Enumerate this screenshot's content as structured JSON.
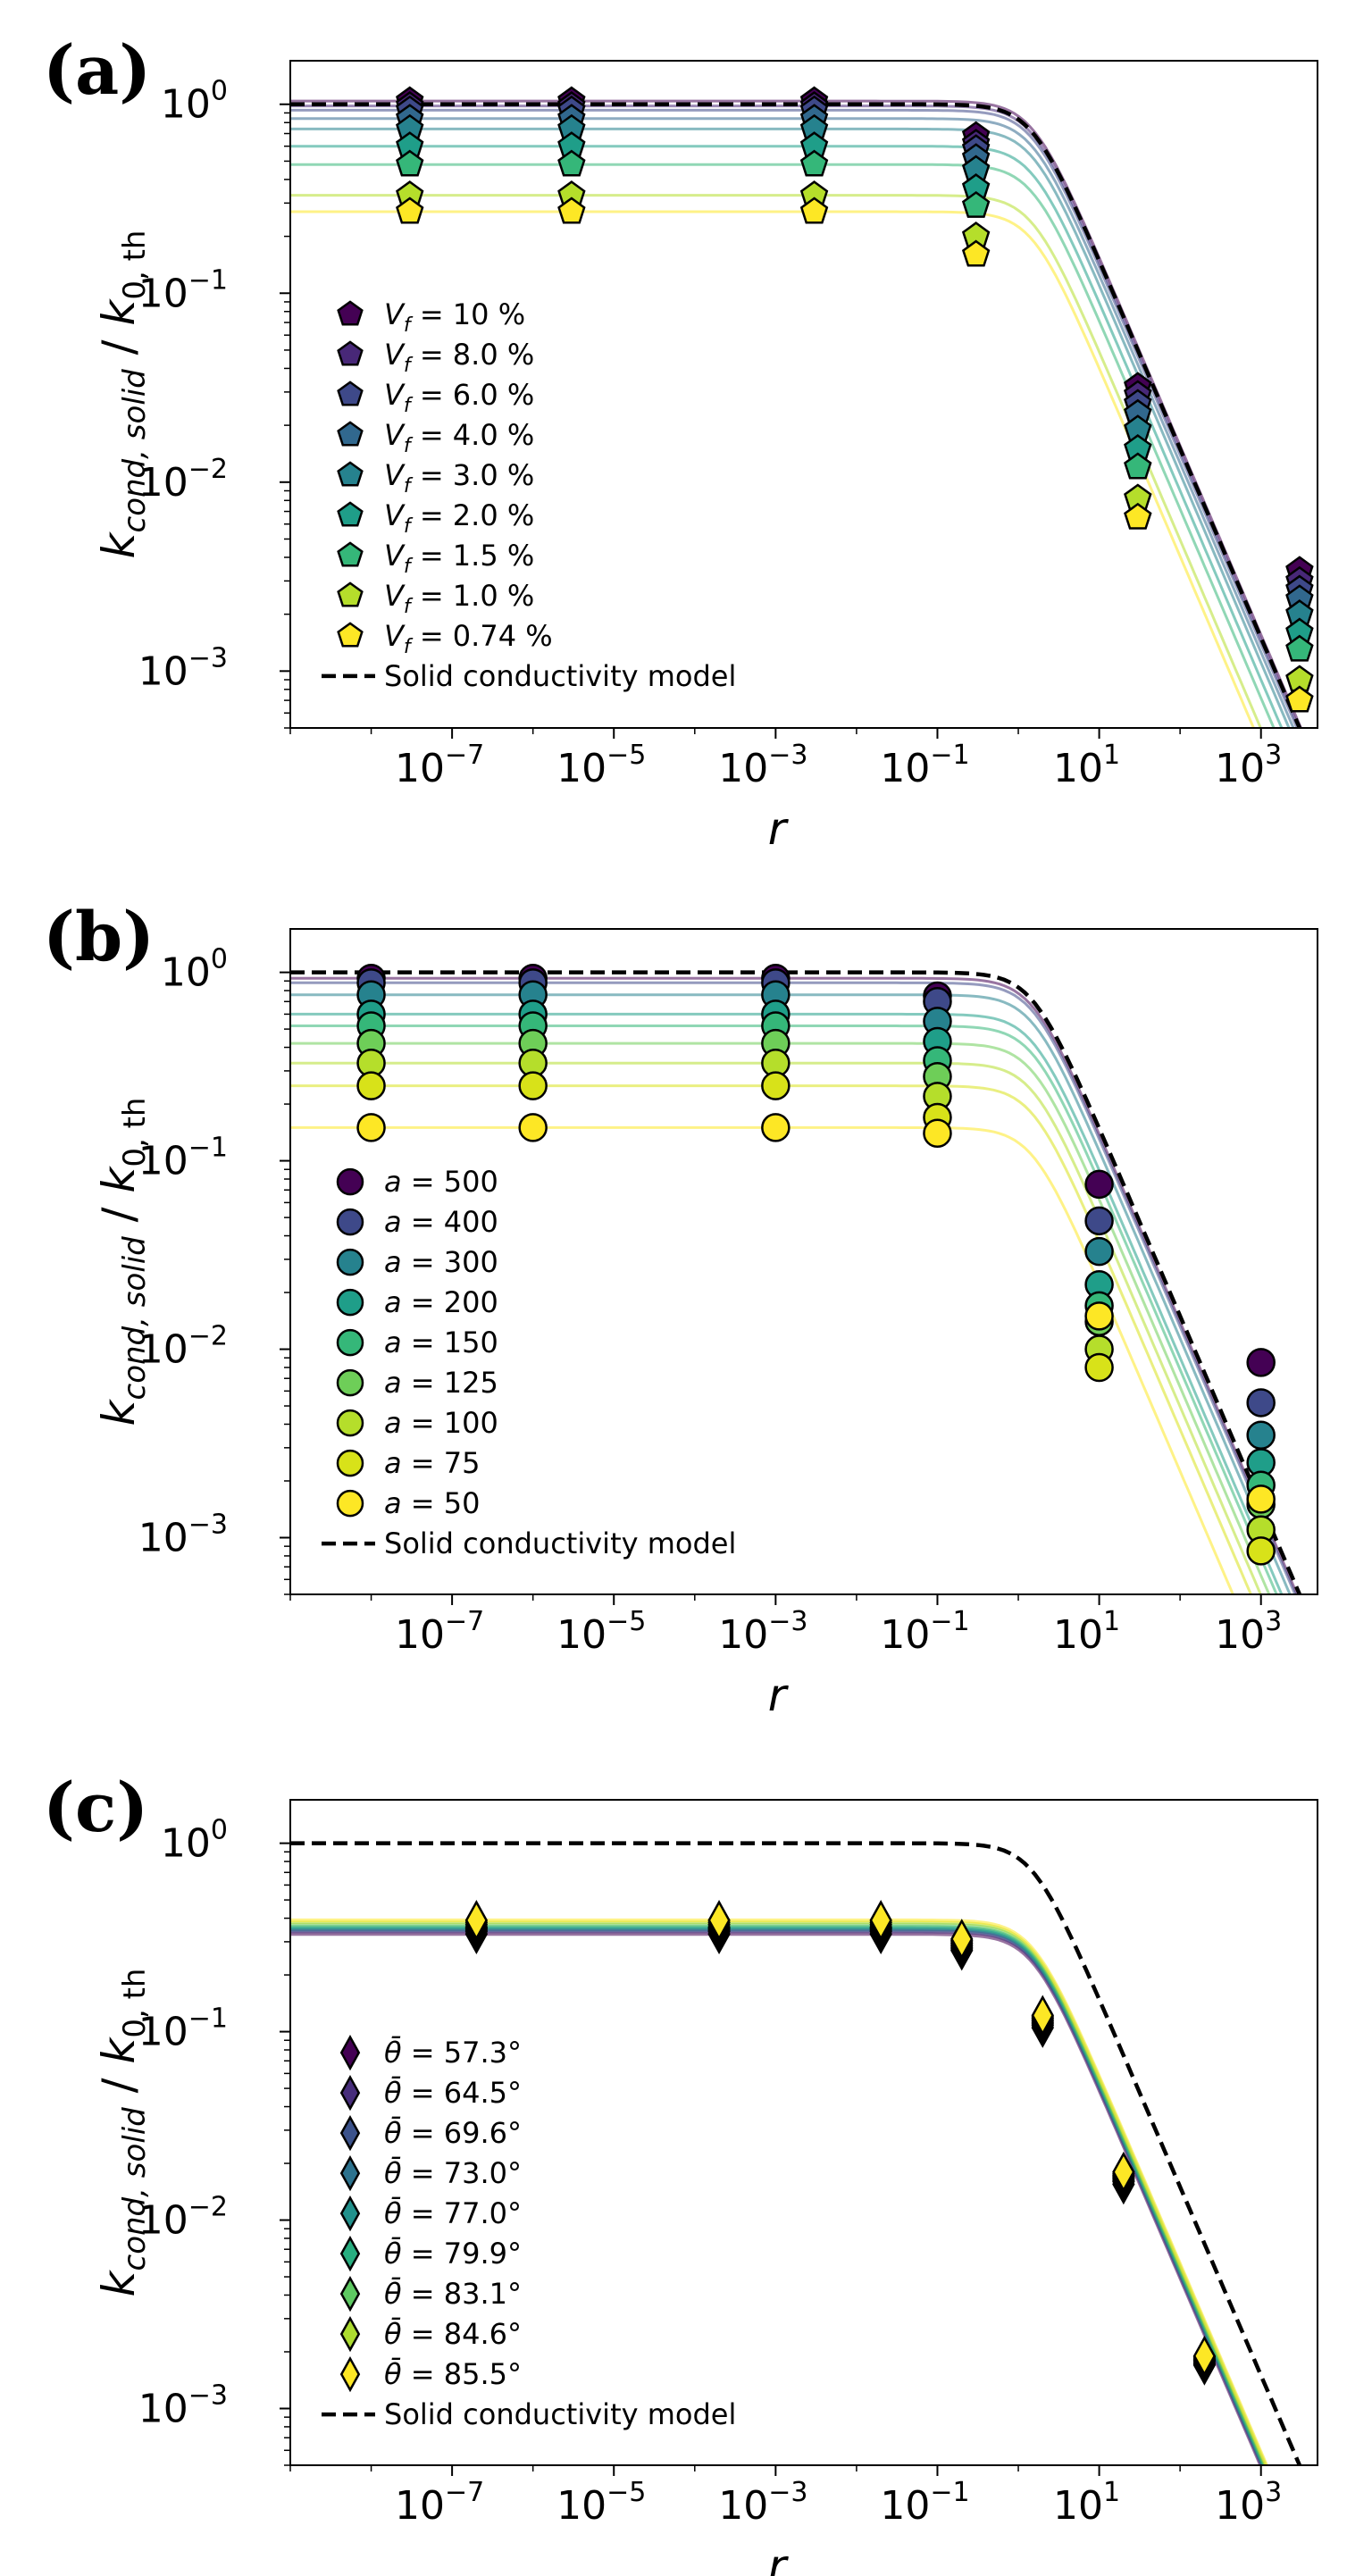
{
  "figure": {
    "ylabel_main": "k",
    "ylabel_sub": "cond, solid",
    "ylabel_sep": " / ",
    "ylabel_main2": "k",
    "ylabel_sub2": "0, th",
    "xlabel": "r",
    "x_ticks": [
      -7,
      -5,
      -3,
      -1,
      1,
      3
    ],
    "y_ticks": [
      0,
      -1,
      -2,
      -3
    ],
    "model_label": "Solid conductivity model"
  },
  "chart_data": [
    {
      "panel": "(a)",
      "type": "scatter",
      "marker": "pentagon",
      "xscale": "log",
      "yscale": "log",
      "xlim": [
        1e-09,
        5000
      ],
      "ylim": [
        0.0005,
        1.7
      ],
      "x": [
        3e-08,
        3e-06,
        0.003,
        0.3,
        30,
        3000
      ],
      "series": [
        {
          "name": "V_f = 10 %",
          "label_var": "V",
          "label_sub": "f",
          "label_val": " = 10 %",
          "color": "#440154",
          "plateau": 1.04,
          "values": [
            1.04,
            1.04,
            1.04,
            0.68,
            0.032,
            0.0034
          ]
        },
        {
          "name": "V_f = 8.0 %",
          "label_var": "V",
          "label_sub": "f",
          "label_val": " = 8.0 %",
          "color": "#482878",
          "plateau": 0.98,
          "values": [
            0.98,
            0.98,
            0.98,
            0.62,
            0.029,
            0.003
          ]
        },
        {
          "name": "V_f = 6.0 %",
          "label_var": "V",
          "label_sub": "f",
          "label_val": " = 6.0 %",
          "color": "#3e4989",
          "plateau": 0.93,
          "values": [
            0.93,
            0.93,
            0.93,
            0.58,
            0.026,
            0.0027
          ]
        },
        {
          "name": "V_f = 4.0 %",
          "label_var": "V",
          "label_sub": "f",
          "label_val": " = 4.0 %",
          "color": "#31688e",
          "plateau": 0.84,
          "values": [
            0.84,
            0.84,
            0.84,
            0.52,
            0.023,
            0.0024
          ]
        },
        {
          "name": "V_f = 3.0 %",
          "label_var": "V",
          "label_sub": "f",
          "label_val": " = 3.0 %",
          "color": "#26828e",
          "plateau": 0.74,
          "values": [
            0.74,
            0.74,
            0.74,
            0.45,
            0.019,
            0.002
          ]
        },
        {
          "name": "V_f = 2.0 %",
          "label_var": "V",
          "label_sub": "f",
          "label_val": " = 2.0 %",
          "color": "#1f9e89",
          "plateau": 0.6,
          "values": [
            0.6,
            0.6,
            0.6,
            0.36,
            0.015,
            0.0016
          ]
        },
        {
          "name": "V_f = 1.5 %",
          "label_var": "V",
          "label_sub": "f",
          "label_val": " = 1.5 %",
          "color": "#35b779",
          "plateau": 0.48,
          "values": [
            0.48,
            0.48,
            0.48,
            0.29,
            0.012,
            0.0013
          ]
        },
        {
          "name": "V_f = 1.0 %",
          "label_var": "V",
          "label_sub": "f",
          "label_val": " = 1.0 %",
          "color": "#b5de2b",
          "plateau": 0.33,
          "values": [
            0.33,
            0.33,
            0.33,
            0.2,
            0.0082,
            0.0009
          ]
        },
        {
          "name": "V_f = 0.74 %",
          "label_var": "V",
          "label_sub": "f",
          "label_val": " = 0.74 %",
          "color": "#fde725",
          "plateau": 0.27,
          "values": [
            0.27,
            0.27,
            0.27,
            0.16,
            0.0065,
            0.0007
          ]
        }
      ]
    },
    {
      "panel": "(b)",
      "type": "scatter",
      "marker": "circle",
      "xscale": "log",
      "yscale": "log",
      "xlim": [
        1e-09,
        5000
      ],
      "ylim": [
        0.0005,
        1.7
      ],
      "x": [
        1e-08,
        1e-06,
        0.001,
        0.1,
        10,
        1000
      ],
      "series": [
        {
          "name": "a = 500",
          "label_var": "a",
          "label_sub": "",
          "label_val": " = 500",
          "color": "#440154",
          "plateau": 0.93,
          "values": [
            0.93,
            0.93,
            0.93,
            0.75,
            0.075,
            0.0085
          ]
        },
        {
          "name": "a = 400",
          "label_var": "a",
          "label_sub": "",
          "label_val": " = 400",
          "color": "#3e4989",
          "plateau": 0.88,
          "values": [
            0.88,
            0.88,
            0.88,
            0.7,
            0.048,
            0.0052
          ]
        },
        {
          "name": "a = 300",
          "label_var": "a",
          "label_sub": "",
          "label_val": " = 300",
          "color": "#26828e",
          "plateau": 0.76,
          "values": [
            0.76,
            0.76,
            0.76,
            0.55,
            0.033,
            0.0035
          ]
        },
        {
          "name": "a = 200",
          "label_var": "a",
          "label_sub": "",
          "label_val": " = 200",
          "color": "#1f9e89",
          "plateau": 0.6,
          "values": [
            0.6,
            0.6,
            0.6,
            0.43,
            0.022,
            0.0025
          ]
        },
        {
          "name": "a = 150",
          "label_var": "a",
          "label_sub": "",
          "label_val": " = 150",
          "color": "#35b779",
          "plateau": 0.52,
          "values": [
            0.52,
            0.52,
            0.52,
            0.34,
            0.017,
            0.0019
          ]
        },
        {
          "name": "a = 125",
          "label_var": "a",
          "label_sub": "",
          "label_val": " = 125",
          "color": "#6ece58",
          "plateau": 0.42,
          "values": [
            0.42,
            0.42,
            0.42,
            0.28,
            0.014,
            0.0015
          ]
        },
        {
          "name": "a = 100",
          "label_var": "a",
          "label_sub": "",
          "label_val": " = 100",
          "color": "#b5de2b",
          "plateau": 0.33,
          "values": [
            0.33,
            0.33,
            0.33,
            0.22,
            0.01,
            0.0011
          ]
        },
        {
          "name": "a = 75",
          "label_var": "a",
          "label_sub": "",
          "label_val": " = 75",
          "color": "#d8e219",
          "plateau": 0.25,
          "values": [
            0.25,
            0.25,
            0.25,
            0.17,
            0.008,
            0.00085
          ]
        },
        {
          "name": "a = 50",
          "label_var": "a",
          "label_sub": "",
          "label_val": " = 50",
          "color": "#fde725",
          "plateau": 0.15,
          "values": [
            0.15,
            0.15,
            0.15,
            0.14,
            0.015,
            0.0016
          ]
        }
      ]
    },
    {
      "panel": "(c)",
      "type": "scatter",
      "marker": "diamond",
      "xscale": "log",
      "yscale": "log",
      "xlim": [
        1e-09,
        5000
      ],
      "ylim": [
        0.0005,
        1.7
      ],
      "x": [
        2e-07,
        0.0002,
        0.02,
        0.2,
        2,
        20,
        200
      ],
      "series": [
        {
          "name": "θ̄ = 57.3°",
          "label_var": "θ̄",
          "label_sub": "",
          "label_val": " = 57.3°",
          "color": "#440154",
          "plateau": 0.33,
          "values": [
            0.33,
            0.33,
            0.33,
            0.27,
            0.105,
            0.0155,
            0.0017
          ]
        },
        {
          "name": "θ̄ = 64.5°",
          "label_var": "θ̄",
          "label_sub": "",
          "label_val": " = 64.5°",
          "color": "#472d7b",
          "plateau": 0.34,
          "values": [
            0.34,
            0.34,
            0.34,
            0.275,
            0.108,
            0.016,
            0.00172
          ]
        },
        {
          "name": "θ̄ = 69.6°",
          "label_var": "θ̄",
          "label_sub": "",
          "label_val": " = 69.6°",
          "color": "#3b528b",
          "plateau": 0.345,
          "values": [
            0.345,
            0.345,
            0.345,
            0.28,
            0.11,
            0.0162,
            0.00175
          ]
        },
        {
          "name": "θ̄ = 73.0°",
          "label_var": "θ̄",
          "label_sub": "",
          "label_val": " = 73.0°",
          "color": "#2c728e",
          "plateau": 0.35,
          "values": [
            0.35,
            0.35,
            0.35,
            0.285,
            0.112,
            0.0165,
            0.00178
          ]
        },
        {
          "name": "θ̄ = 77.0°",
          "label_var": "θ̄",
          "label_sub": "",
          "label_val": " = 77.0°",
          "color": "#21918c",
          "plateau": 0.355,
          "values": [
            0.355,
            0.355,
            0.355,
            0.29,
            0.114,
            0.0168,
            0.0018
          ]
        },
        {
          "name": "θ̄ = 79.9°",
          "label_var": "θ̄",
          "label_sub": "",
          "label_val": " = 79.9°",
          "color": "#28ae80",
          "plateau": 0.36,
          "values": [
            0.36,
            0.36,
            0.36,
            0.295,
            0.116,
            0.017,
            0.00182
          ]
        },
        {
          "name": "θ̄ = 83.1°",
          "label_var": "θ̄",
          "label_sub": "",
          "label_val": " = 83.1°",
          "color": "#5ec962",
          "plateau": 0.37,
          "values": [
            0.37,
            0.37,
            0.37,
            0.3,
            0.118,
            0.0173,
            0.00185
          ]
        },
        {
          "name": "θ̄ = 84.6°",
          "label_var": "θ̄",
          "label_sub": "",
          "label_val": " = 84.6°",
          "color": "#addc30",
          "plateau": 0.38,
          "values": [
            0.38,
            0.38,
            0.38,
            0.305,
            0.12,
            0.0176,
            0.00188
          ]
        },
        {
          "name": "θ̄ = 85.5°",
          "label_var": "θ̄",
          "label_sub": "",
          "label_val": " = 85.5°",
          "color": "#fde725",
          "plateau": 0.39,
          "values": [
            0.39,
            0.39,
            0.39,
            0.31,
            0.122,
            0.018,
            0.0019
          ]
        }
      ]
    }
  ]
}
